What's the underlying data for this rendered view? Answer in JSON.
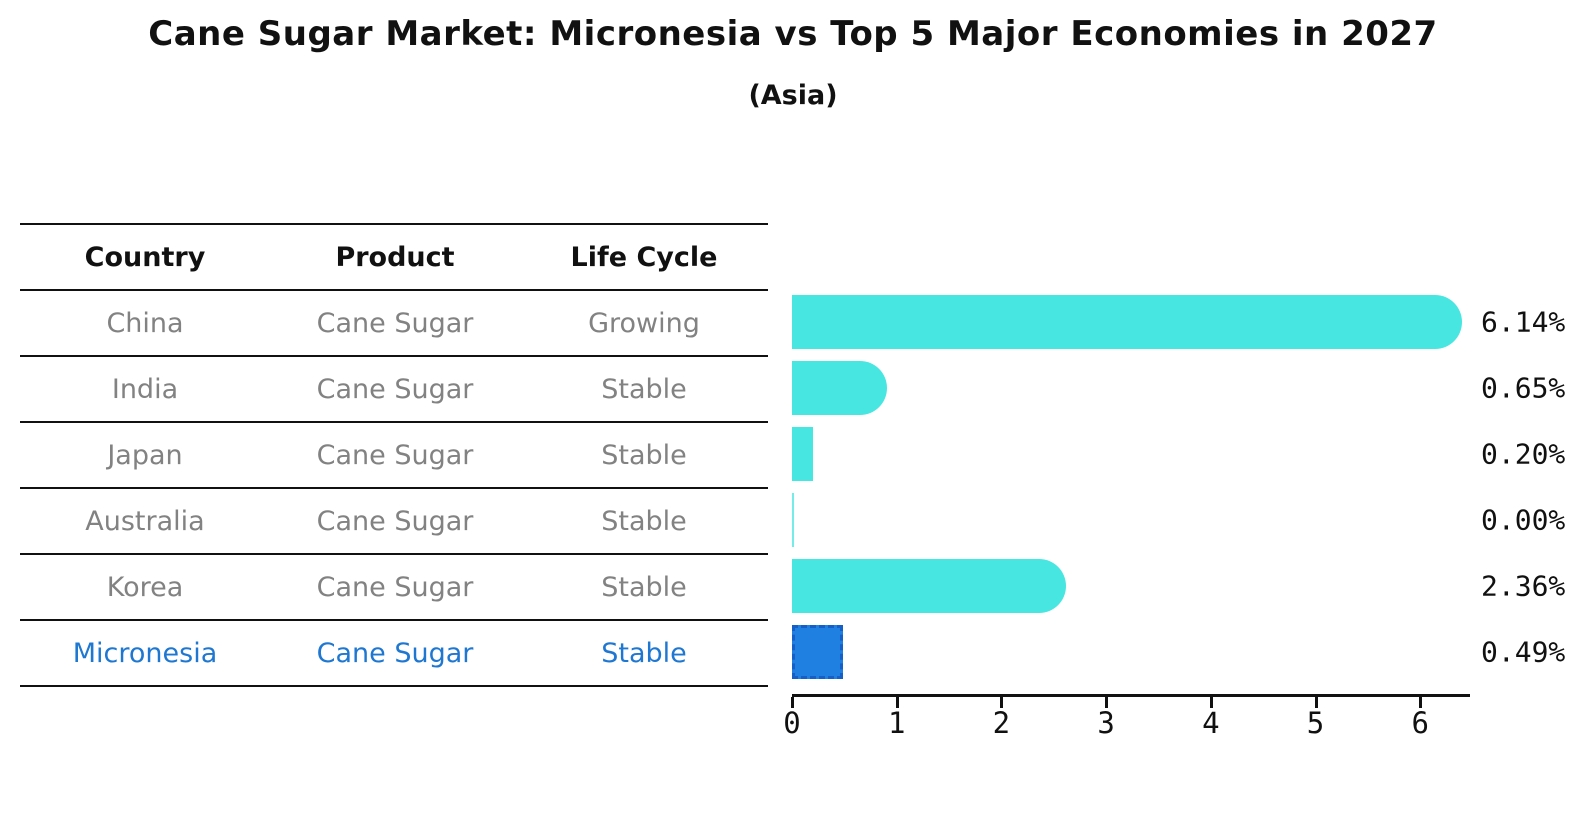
{
  "title": "Cane Sugar Market: Micronesia vs Top 5 Major Economies in 2027",
  "subtitle": "(Asia)",
  "table": {
    "headers": [
      "Country",
      "Product",
      "Life Cycle"
    ],
    "rows": [
      {
        "country": "China",
        "product": "Cane Sugar",
        "life_cycle": "Growing",
        "highlight": false
      },
      {
        "country": "India",
        "product": "Cane Sugar",
        "life_cycle": "Stable",
        "highlight": false
      },
      {
        "country": "Japan",
        "product": "Cane Sugar",
        "life_cycle": "Stable",
        "highlight": false
      },
      {
        "country": "Australia",
        "product": "Cane Sugar",
        "life_cycle": "Stable",
        "highlight": false
      },
      {
        "country": "Korea",
        "product": "Cane Sugar",
        "life_cycle": "Stable",
        "highlight": false
      },
      {
        "country": "Micronesia",
        "product": "Cane Sugar",
        "life_cycle": "Stable",
        "highlight": true
      }
    ]
  },
  "chart_data": {
    "type": "bar",
    "orientation": "horizontal",
    "categories": [
      "China",
      "India",
      "Japan",
      "Australia",
      "Korea",
      "Micronesia"
    ],
    "values": [
      6.14,
      0.65,
      0.2,
      0.0,
      2.36,
      0.49
    ],
    "value_labels": [
      "6.14%",
      "0.65%",
      "0.20%",
      "0.00%",
      "2.36%",
      "0.49%"
    ],
    "title": "Cane Sugar Market: Micronesia vs Top 5 Major Economies in 2027 (Asia)",
    "xlabel": "",
    "ylabel": "",
    "xlim": [
      0,
      6.45
    ],
    "x_ticks": [
      0,
      1,
      2,
      3,
      4,
      5,
      6
    ],
    "grid": false,
    "legend": false,
    "bar_color": "#48E6E1",
    "highlight_bar_color": "#2080E2",
    "highlight_index": 5
  },
  "colors": {
    "background": "#ffffff",
    "bar_cyan": "#48E6E1",
    "bar_blue_fill": "#2080E2",
    "bar_blue_border": "#1460C8",
    "highlight_text": "#1E78D2",
    "table_text_gray": "#828282",
    "ink_black": "#111111"
  }
}
